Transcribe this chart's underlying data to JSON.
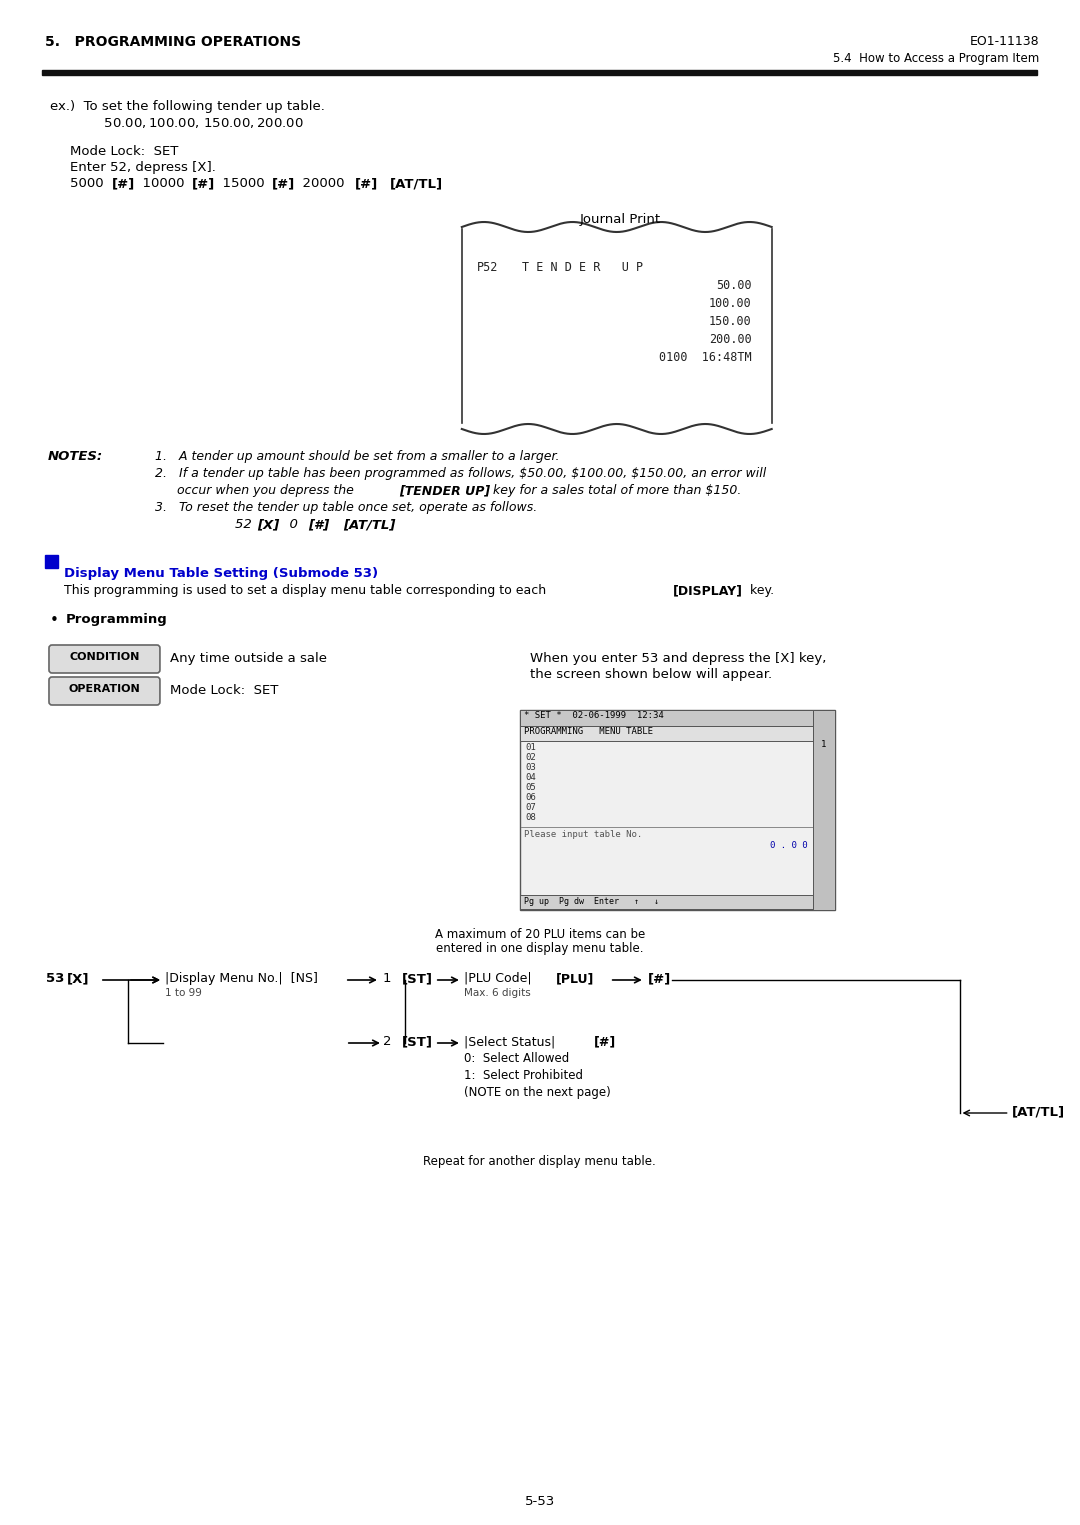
{
  "page_title_left": "5.   PROGRAMMING OPERATIONS",
  "page_title_right": "EO1-11138",
  "page_subtitle_right": "5.4  How to Access a Program Item",
  "section_header": "Display Menu Table Setting (Submode 53)",
  "bg_color": "#ffffff",
  "text_color": "#000000",
  "blue_color": "#0000cc",
  "gray_color": "#888888",
  "ex_text_line1": "ex.)  To set the following tender up table.",
  "ex_text_line2": "        $50.00, $100.00, $150.00, $200.00",
  "mode_lock_line": "Mode Lock:  SET",
  "enter_line": "Enter 52, depress [X].",
  "journal_print": "Journal Print",
  "notes_label": "NOTES:",
  "section_desc": "This programming is used to set a display menu table corresponding to each [DISPLAY] key.",
  "programming_bullet": "Programming",
  "condition_label": "CONDITION",
  "condition_text": "Any time outside a sale",
  "operation_label": "OPERATION",
  "operation_text": "Mode Lock:  SET",
  "screen_desc1": "When you enter 53 and depress the [X] key,",
  "screen_desc2": "the screen shown below will appear.",
  "screen_rows": [
    "01",
    "02",
    "03",
    "04",
    "05",
    "06",
    "07",
    "08"
  ],
  "screen_input": "Please input table No.",
  "screen_value": "0 . 0 0",
  "screen_footer": "Pg up  Pg dw  Enter   ↑   ↓",
  "note_above_diagram1": "A maximum of 20 PLU items can be",
  "note_above_diagram2": "entered in one display menu table.",
  "diagram_repeat": "Repeat for another display menu table.",
  "diagram_attl": "[AT/TL]",
  "footer_page": "5-53"
}
